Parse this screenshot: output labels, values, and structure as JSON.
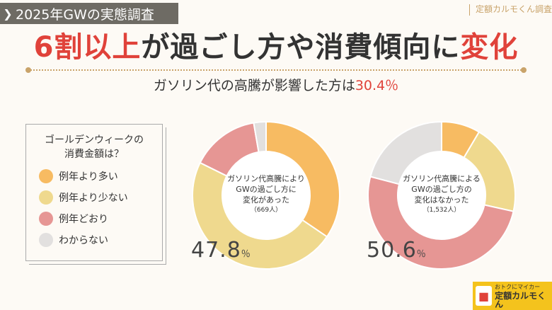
{
  "header": {
    "tag": "2025年GWの実態調査",
    "brand": "定額カルモくん調査"
  },
  "headline": {
    "part1": "6割以上",
    "part2": "が過ごし方や消費傾向に",
    "part3": "変化"
  },
  "subhead": {
    "text": "ガソリン代の高騰が影響した方は",
    "value": "30.4％"
  },
  "legend": {
    "title_line1": "ゴールデンウィークの",
    "title_line2": "消費金額は？",
    "items": [
      {
        "label": "例年より多い",
        "color": "#f7bb62"
      },
      {
        "label": "例年より少ない",
        "color": "#efd98e"
      },
      {
        "label": "例年どおり",
        "color": "#e69694"
      },
      {
        "label": "わからない",
        "color": "#e2e0df"
      }
    ]
  },
  "chart_data": [
    {
      "type": "pie",
      "center_line1": "ガソリン代高騰により",
      "center_line2": "GWの過ごし方に",
      "center_line3": "変化があった",
      "center_count": "（669人）",
      "categories": [
        "例年より多い",
        "例年より少ない",
        "例年どおり",
        "わからない"
      ],
      "values": [
        34.5,
        47.8,
        15.0,
        2.7
      ],
      "highlight_label": "47.8",
      "highlight_unit": "％"
    },
    {
      "type": "pie",
      "center_line1": "ガソリン代高騰による",
      "center_line2": "GWの過ごし方の",
      "center_line3": "変化はなかった",
      "center_count": "（1,532人）",
      "categories": [
        "例年より多い",
        "例年より少ない",
        "例年どおり",
        "わからない"
      ],
      "values": [
        8.5,
        20.0,
        50.6,
        20.9
      ],
      "highlight_label": "50.6",
      "highlight_unit": "％"
    }
  ],
  "logo": {
    "line1": "おトクにマイカー",
    "line2": "定額カルモくん"
  }
}
